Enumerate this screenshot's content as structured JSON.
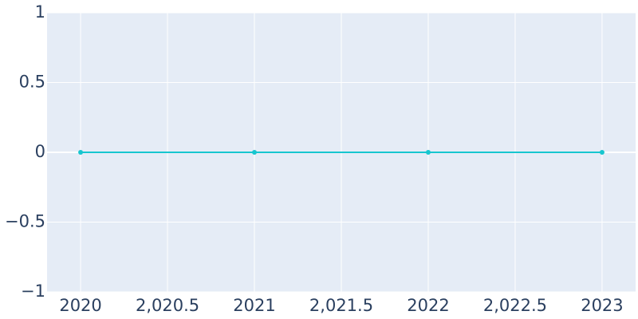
{
  "chart_data": {
    "type": "line",
    "x": [
      2020,
      2021,
      2022,
      2023
    ],
    "values": [
      0,
      0,
      0,
      0
    ],
    "color": "#17c6cf",
    "xlim": [
      2019.807,
      2023.193
    ],
    "ylim": [
      -1,
      1
    ],
    "xticks": [
      2020,
      {
        "value": 2020.5,
        "label": "2,020.5"
      },
      2021,
      {
        "value": 2021.5,
        "label": "2,021.5"
      },
      2022,
      {
        "value": 2022.5,
        "label": "2,022.5"
      },
      2023
    ],
    "yticks": [
      1,
      0.5,
      0,
      {
        "value": -0.5,
        "label": "−0.5"
      },
      {
        "value": -1,
        "label": "−1"
      }
    ],
    "grid": true
  }
}
